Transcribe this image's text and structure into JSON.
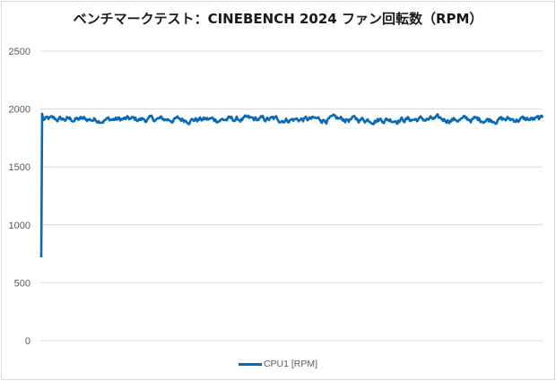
{
  "chart_data": {
    "type": "line",
    "title": "ベンチマークテスト：CINEBENCH 2024 ファン回転数（RPM）",
    "xlabel": "",
    "ylabel": "",
    "ylim": [
      0,
      2500
    ],
    "yticks": [
      0,
      500,
      1000,
      1500,
      2000,
      2500
    ],
    "grid": true,
    "legend_position": "bottom",
    "series": [
      {
        "name": "CPU1 [RPM]",
        "color": "#0a69b4",
        "start_value": 720,
        "plateau_mean": 1910,
        "plateau_min": 1860,
        "plateau_max": 1965,
        "num_points": 560
      }
    ]
  },
  "legend": {
    "label": "CPU1 [RPM]"
  },
  "title": "ベンチマークテスト：CINEBENCH 2024 ファン回転数（RPM）"
}
